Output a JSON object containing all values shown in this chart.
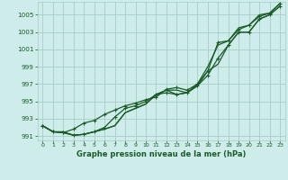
{
  "xlabel": "Graphe pression niveau de la mer (hPa)",
  "background_color": "#ceecea",
  "grid_color": "#aaccc8",
  "line_color": "#1a5c28",
  "x": [
    0,
    1,
    2,
    3,
    4,
    5,
    6,
    7,
    8,
    9,
    10,
    11,
    12,
    13,
    14,
    15,
    16,
    17,
    18,
    19,
    20,
    21,
    22,
    23
  ],
  "line1": [
    992.2,
    991.5,
    991.5,
    991.1,
    991.2,
    991.5,
    991.8,
    992.2,
    993.7,
    994.2,
    994.7,
    995.8,
    996.3,
    996.3,
    996.0,
    996.8,
    998.5,
    999.3,
    1001.5,
    1003.0,
    1003.0,
    1004.5,
    1005.0,
    1006.0
  ],
  "line2": [
    992.2,
    991.5,
    991.4,
    991.1,
    991.2,
    991.5,
    992.0,
    993.2,
    994.2,
    994.5,
    995.0,
    995.8,
    996.0,
    995.8,
    996.0,
    996.8,
    998.0,
    1000.0,
    1001.5,
    1003.0,
    1003.0,
    1004.5,
    1005.0,
    1006.0
  ],
  "line3": [
    992.2,
    991.5,
    991.4,
    991.8,
    992.5,
    992.8,
    993.5,
    994.0,
    994.5,
    994.8,
    995.2,
    995.5,
    996.4,
    996.6,
    996.3,
    997.0,
    998.5,
    1001.8,
    1002.0,
    1003.3,
    1003.8,
    1004.8,
    1005.2,
    1006.3
  ],
  "line4": [
    992.2,
    991.5,
    991.4,
    991.1,
    991.2,
    991.5,
    991.8,
    992.2,
    993.7,
    994.2,
    994.7,
    995.8,
    996.3,
    995.8,
    996.0,
    997.0,
    999.0,
    1001.5,
    1002.0,
    1003.5,
    1003.8,
    1005.0,
    1005.2,
    1006.3
  ],
  "ylim": [
    990.5,
    1006.5
  ],
  "yticks": [
    991,
    993,
    995,
    997,
    999,
    1001,
    1003,
    1005
  ],
  "xlim": [
    -0.5,
    23.5
  ],
  "xticks": [
    0,
    1,
    2,
    3,
    4,
    5,
    6,
    7,
    8,
    9,
    10,
    11,
    12,
    13,
    14,
    15,
    16,
    17,
    18,
    19,
    20,
    21,
    22,
    23
  ]
}
